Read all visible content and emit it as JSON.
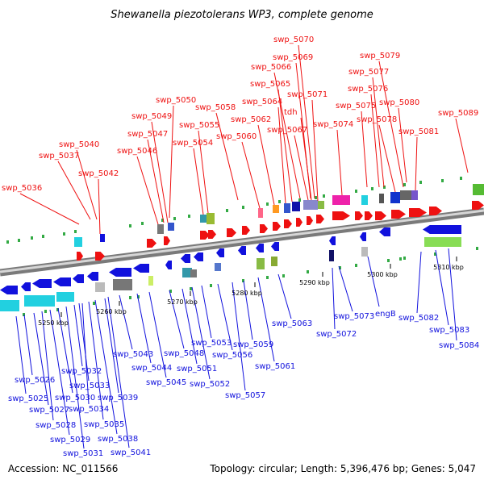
{
  "title": "Shewanella piezotolerans WP3, complete genome",
  "footer": {
    "accession": "Accession: NC_011566",
    "topology": "Topology: circular; Length: 5,396,476 bp; Genes: 5,047"
  },
  "colors": {
    "top_strand": "#ee1111",
    "bottom_strand": "#1111dd",
    "backbone": "#999999"
  },
  "kbp_ticks": [
    "5250 kbp",
    "5260 kbp",
    "5270 kbp",
    "5280 kbp",
    "5290 kbp",
    "5300 kbp",
    "5310 kbp"
  ],
  "top_gene_labels": [
    "swp_5036",
    "swp_5037",
    "swp_5040",
    "swp_5042",
    "swp_5046",
    "swp_5047",
    "swp_5049",
    "swp_5050",
    "swp_5054",
    "swp_5055",
    "swp_5058",
    "swp_5060",
    "swp_5062",
    "swp_5064",
    "swp_5065",
    "swp_5066",
    "swp_5067",
    "swp_5069",
    "swp_5070",
    "tdh",
    "swp_5071",
    "swp_5074",
    "swp_5075",
    "swp_5076",
    "swp_5077",
    "swp_5078",
    "swp_5079",
    "swp_5080",
    "swp_5081",
    "swp_5089"
  ],
  "bottom_gene_labels": [
    "swp_5025",
    "swp_5026",
    "swp_5027",
    "swp_5028",
    "swp_5029",
    "swp_5030",
    "swp_5031",
    "swp_5032",
    "swp_5033",
    "swp_5034",
    "swp_5035",
    "swp_5038",
    "swp_5039",
    "swp_5041",
    "swp_5043",
    "swp_5044",
    "swp_5045",
    "swp_5048",
    "swp_5051",
    "swp_5052",
    "swp_5053",
    "swp_5056",
    "swp_5057",
    "swp_5059",
    "swp_5061",
    "swp_5063",
    "swp_5072",
    "swp_5073",
    "engB",
    "swp_5082",
    "swp_5083",
    "swp_5084"
  ]
}
